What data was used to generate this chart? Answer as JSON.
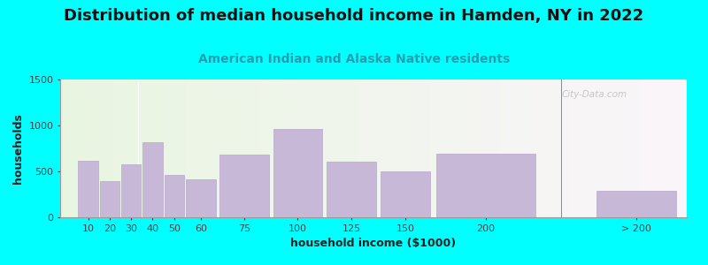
{
  "title": "Distribution of median household income in Hamden, NY in 2022",
  "subtitle": "American Indian and Alaska Native residents",
  "xlabel": "household income ($1000)",
  "ylabel": "households",
  "background_color": "#00FFFF",
  "bar_color": "#c8b8d8",
  "bar_edge_color": "#b8a8cc",
  "categories": [
    "10",
    "20",
    "30",
    "40",
    "50",
    "60",
    "75",
    "100",
    "125",
    "150",
    "200",
    "> 200"
  ],
  "values": [
    620,
    390,
    575,
    820,
    460,
    410,
    680,
    960,
    610,
    500,
    690,
    290
  ],
  "ylim": [
    0,
    1500
  ],
  "yticks": [
    0,
    500,
    1000,
    1500
  ],
  "title_fontsize": 13,
  "subtitle_fontsize": 10,
  "axis_label_fontsize": 9,
  "tick_fontsize": 8,
  "watermark": "City-Data.com"
}
